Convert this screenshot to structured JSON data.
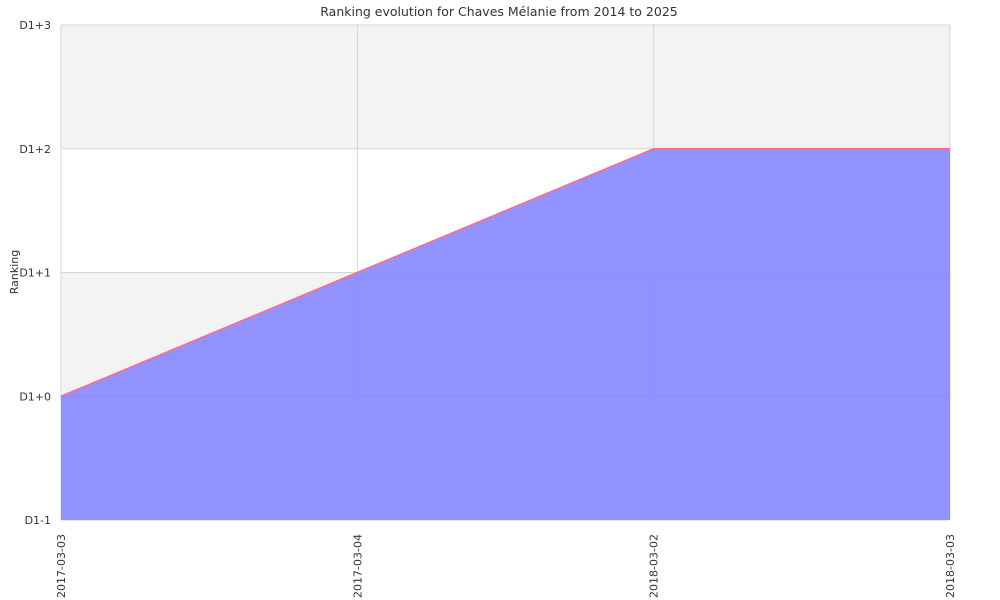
{
  "chart_data": {
    "type": "area",
    "title": "Ranking evolution for Chaves Mélanie from 2014 to 2025",
    "xlabel": "",
    "ylabel": "Ranking",
    "categories": [
      "2017-03-03",
      "2017-03-04",
      "2018-03-02",
      "2018-03-03"
    ],
    "y_ticks": [
      "D1-1",
      "D1+0",
      "D1+1",
      "D1+2",
      "D1+3"
    ],
    "y_tick_values": [
      -1,
      0,
      1,
      2,
      3
    ],
    "ylim": [
      -1,
      3
    ],
    "series": [
      {
        "values": [
          0,
          1,
          2,
          2
        ]
      }
    ],
    "grid": true,
    "band_colors": [
      "#ffffff",
      "#f3f3f3"
    ],
    "fill_color": "#8080ff",
    "line_color": "#ff6a8a"
  }
}
